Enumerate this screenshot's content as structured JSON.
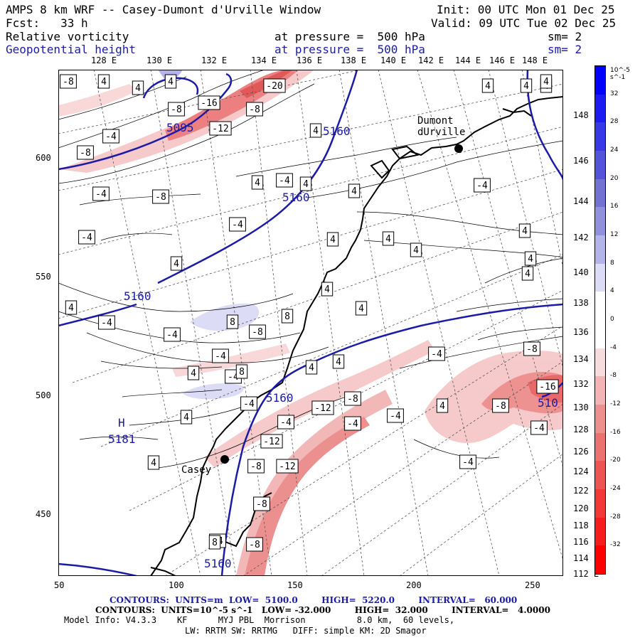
{
  "header": {
    "model_title": "AMPS 8 km WRF -- Casey-Dumont d'Urville Window",
    "init": "Init: 00 UTC Mon 01 Dec 25",
    "forecast": "Fcst:   33 h",
    "valid": "Valid: 09 UTC Tue 02 Dec 25",
    "field1_name": "Relative vorticity",
    "field1_level": "at pressure =  500 hPa",
    "field1_sm": "sm= 2",
    "field2_name": "Geopotential height",
    "field2_level": "at pressure =  500 hPa",
    "field2_sm": "sm= 2"
  },
  "colors": {
    "height_contour": "#1b1ba8",
    "coast": "#000000",
    "positive_shade": "#d63b3b",
    "negative_shade": "#3b3bd6"
  },
  "top_lon_labels": [
    "128 E",
    "130 E",
    "132 E",
    "134 E",
    "136 E",
    "138 E",
    "140 E",
    "142 E",
    "144 E",
    "146 E",
    "148 E"
  ],
  "right_lon_labels": [
    "148 E",
    "146 E",
    "144 E",
    "142 E",
    "140 E",
    "138 E",
    "136 E",
    "134 E",
    "132 E",
    "130 E",
    "128 E",
    "126 E",
    "124 E",
    "122 E",
    "120 E",
    "118 E",
    "116 E",
    "114 E",
    "112 E"
  ],
  "left_axis_labels": [
    "600",
    "550",
    "500",
    "450"
  ],
  "bottom_axis_labels": [
    "50",
    "100",
    "150",
    "200",
    "250"
  ],
  "colorbar": {
    "unit_label": "10^-5 s^-1",
    "labels": [
      "32",
      "28",
      "24",
      "20",
      "16",
      "12",
      "8",
      "4",
      "0",
      "-4",
      "-8",
      "-12",
      "-16",
      "-20",
      "-24",
      "-28",
      "-32"
    ],
    "colors": [
      "#0000ff",
      "#1c1cf2",
      "#3838e6",
      "#5454da",
      "#7272d2",
      "#9090dc",
      "#b4b4ea",
      "#dcdcf6",
      "#ffffff",
      "#ffffff",
      "#f6dcdc",
      "#f2b4b4",
      "#ee9090",
      "#ec7272",
      "#ee5454",
      "#f23838",
      "#f61c1c",
      "#ff0000"
    ]
  },
  "stations": [
    {
      "name": "Dumont\ndUrville"
    },
    {
      "name": "Casey"
    }
  ],
  "height_labels": [
    "5095",
    "5160",
    "5160",
    "5160",
    "5160",
    "5160",
    "510",
    "5181",
    "H"
  ],
  "vorticity_boxes": [
    "-8",
    "4",
    "4",
    "4",
    "-16",
    "-20",
    "-8",
    "-8",
    "-12",
    "4",
    "-8",
    "-4",
    "-4",
    "-8",
    "-4",
    "4",
    "-4",
    "4",
    "-4",
    "4",
    "4",
    "4",
    "4",
    "-4",
    "4",
    "4",
    "4",
    "4",
    "4",
    "4",
    "4",
    "4",
    "4",
    "4",
    "4",
    "-4",
    "-4",
    "8",
    "-8",
    "8",
    "-4",
    "-4",
    "4",
    "4",
    "4",
    "-4",
    "8",
    "4",
    "4",
    "-8",
    "-12",
    "-4",
    "-4",
    "-12",
    "-12",
    "-8",
    "-4",
    "-8",
    "-8",
    "-4",
    "4",
    "-8",
    "-16",
    "-4",
    "-4",
    "-8",
    "-4",
    "8"
  ],
  "footer": {
    "line1": "CONTOURS:  UNITS=m  LOW=  5100.0        HIGH=  5220.0        INTERVAL=   60.000",
    "line2": "CONTOURS:  UNITS=10^-5 s^-1   LOW= -32.000        HIGH=  32.000        INTERVAL=   4.0000",
    "line3": "Model Info: V4.3.3    KF      MYJ PBL  Morrison          8.0 km,  60 levels,",
    "line4": "LW: RRTM SW: RRTMG   DIFF: simple KM: 2D Smagor"
  }
}
